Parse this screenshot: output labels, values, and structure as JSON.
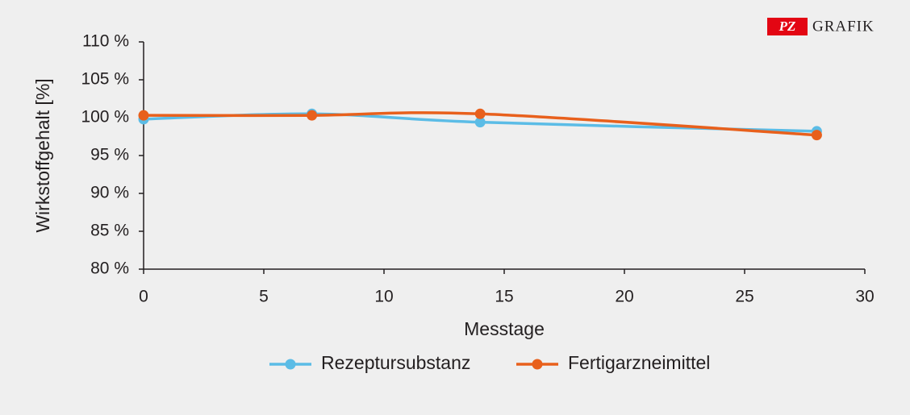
{
  "chart_data": {
    "type": "line",
    "x_label": "Messtage",
    "y_label": "Wirkstoffgehalt [%]",
    "annotations": [
      "PZ",
      "GRAFIK"
    ],
    "xlim": [
      0,
      30
    ],
    "xticks": [
      0,
      5,
      10,
      15,
      20,
      25,
      30
    ],
    "ylim": [
      80,
      110
    ],
    "yticks": [
      {
        "value": 80,
        "label": "80 %"
      },
      {
        "value": 85,
        "label": "85 %"
      },
      {
        "value": 90,
        "label": "90 %"
      },
      {
        "value": 95,
        "label": "95 %"
      },
      {
        "value": 100,
        "label": "100 %"
      },
      {
        "value": 105,
        "label": "105 %"
      },
      {
        "value": 110,
        "label": "110 %"
      }
    ],
    "x": [
      0,
      7,
      14,
      28
    ],
    "smooth": true,
    "grid": false,
    "series": [
      {
        "name": "Rezeptursubstanz",
        "color": "#5bbce6",
        "values": [
          99.8,
          100.5,
          99.4,
          98.2
        ]
      },
      {
        "name": "Fertigarzneimittel",
        "color": "#e8601c",
        "values": [
          100.3,
          100.3,
          100.5,
          97.7
        ]
      }
    ]
  }
}
